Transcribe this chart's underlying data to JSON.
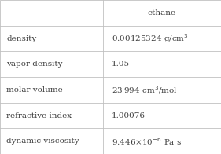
{
  "title": "ethane",
  "rows": [
    [
      "density",
      "0.00125324 g/cm$^3$"
    ],
    [
      "vapor density",
      "1.05"
    ],
    [
      "molar volume",
      "23 994 cm$^3$/mol"
    ],
    [
      "refractive index",
      "1.00076"
    ],
    [
      "dynamic viscosity",
      "9.446×10$^{-6}$ Pa s"
    ]
  ],
  "bg_color": "#ffffff",
  "grid_color": "#c0c0c0",
  "text_color": "#404040",
  "font_size": 7.5,
  "header_font_size": 7.5,
  "col_split": 0.465,
  "figwidth": 2.81,
  "figheight": 1.96,
  "dpi": 100
}
